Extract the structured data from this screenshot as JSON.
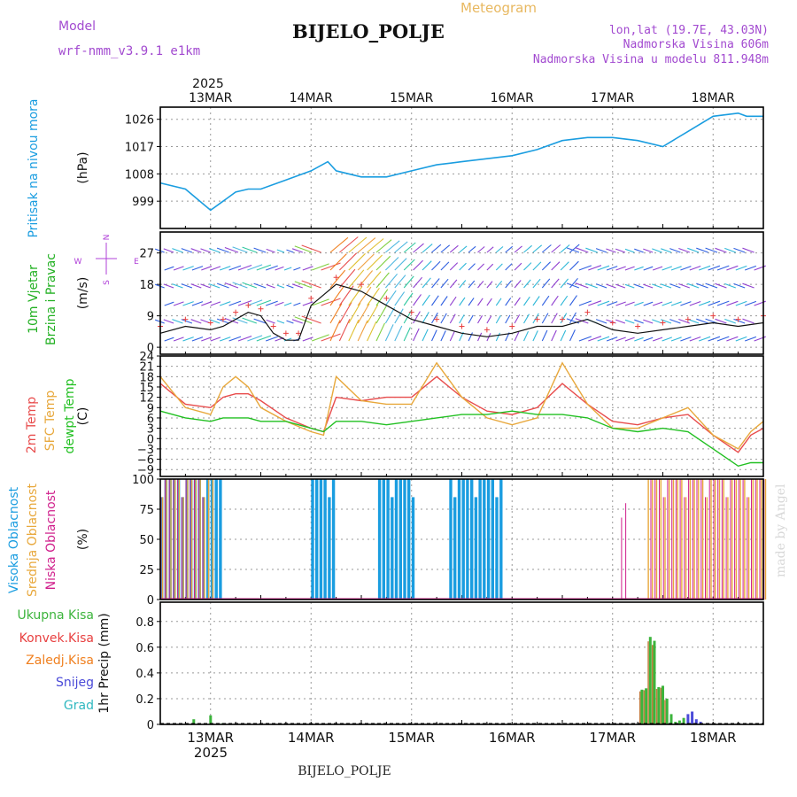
{
  "header": {
    "model_label": "Model",
    "model_name": "wrf-nmm_v3.9.1 e1km",
    "app_title": "Meteogram",
    "station": "BIJELO_POLJE",
    "lonlat": "lon,lat (19.7E, 43.03N)",
    "altitude": "Nadmorska Visina 606m",
    "model_altitude": "Nadmorska Visina u modelu 811.948m"
  },
  "footer": {
    "station": "BIJELO_POLJE",
    "watermark": "made by Angel"
  },
  "colors": {
    "pressure": "#1a9de0",
    "wind_speed_label": "#22b022",
    "wind_dir_label": "#b040d8",
    "temp2m": "#e84c4c",
    "sfc": "#e8a83c",
    "dew": "#22c022",
    "high_cloud": "#1a9de0",
    "mid_cloud": "#e8a83c",
    "low_cloud": "#d0208c",
    "total_precip": "#3cb43c",
    "conv_precip": "#e84040",
    "frz_precip": "#f08020",
    "snow": "#4a4ad8",
    "hail": "#30b8c0",
    "grid": "#999999"
  },
  "timeline": {
    "year": "2025",
    "days": [
      "13MAR",
      "14MAR",
      "15MAR",
      "16MAR",
      "17MAR",
      "18MAR"
    ],
    "start_hour": 0,
    "end_hour": 144
  },
  "chart_data": [
    {
      "type": "line",
      "panel": "pressure",
      "ylabel": "(hPa)",
      "side_labels": [
        "Pritisak na nivou mora"
      ],
      "yticks": [
        999,
        1008,
        1017,
        1026
      ],
      "ylim": [
        990,
        1030
      ],
      "x": [
        0,
        6,
        12,
        15,
        18,
        21,
        24,
        30,
        36,
        40,
        42,
        48,
        54,
        60,
        66,
        72,
        78,
        84,
        90,
        96,
        102,
        108,
        114,
        120,
        126,
        132,
        138,
        140,
        144
      ],
      "values": [
        1005,
        1003,
        996,
        999,
        1002,
        1003,
        1003,
        1006,
        1009,
        1012,
        1009,
        1007,
        1007,
        1009,
        1011,
        1012,
        1013,
        1014,
        1016,
        1019,
        1020,
        1020,
        1019,
        1017,
        1022,
        1027,
        1028,
        1027,
        1027
      ]
    },
    {
      "type": "line",
      "panel": "wind",
      "ylabel": "(m/s)",
      "side_labels": [
        "10m Vjetar",
        "Brzina i Pravac"
      ],
      "compass": [
        "N",
        "E",
        "W",
        "S"
      ],
      "yticks": [
        0,
        9,
        18,
        27
      ],
      "ylim": [
        -2,
        33
      ],
      "x": [
        0,
        6,
        12,
        15,
        18,
        21,
        24,
        27,
        30,
        33,
        36,
        42,
        48,
        54,
        60,
        66,
        72,
        78,
        84,
        90,
        96,
        102,
        108,
        114,
        120,
        126,
        132,
        138,
        144
      ],
      "values": [
        4,
        6,
        5,
        6,
        8,
        10,
        9,
        4,
        2,
        2,
        12,
        18,
        16,
        12,
        8,
        6,
        4,
        3,
        4,
        6,
        6,
        8,
        5,
        4,
        5,
        6,
        7,
        6,
        7
      ]
    },
    {
      "type": "line",
      "panel": "temperature",
      "ylabel": "(C)",
      "side_labels": [
        "2m Temp",
        "SFC Temp",
        "dewpt Temp"
      ],
      "yticks": [
        -9,
        -6,
        -3,
        0,
        3,
        6,
        9,
        12,
        15,
        18,
        21,
        24
      ],
      "ylim": [
        -11,
        24
      ],
      "x": [
        0,
        6,
        12,
        15,
        18,
        21,
        24,
        30,
        36,
        39,
        42,
        48,
        54,
        60,
        66,
        72,
        78,
        84,
        90,
        96,
        102,
        108,
        114,
        120,
        126,
        132,
        138,
        141,
        144
      ],
      "series": [
        {
          "name": "2m Temp",
          "values": [
            16,
            10,
            9,
            12,
            13,
            13,
            11,
            6,
            3,
            2,
            12,
            11,
            12,
            12,
            18,
            12,
            8,
            7,
            9,
            16,
            10,
            5,
            4,
            6,
            7,
            1,
            -4,
            1,
            3
          ]
        },
        {
          "name": "SFC Temp",
          "values": [
            18,
            9,
            7,
            15,
            18,
            15,
            9,
            5,
            2,
            1,
            18,
            11,
            10,
            10,
            22,
            12,
            6,
            4,
            6,
            22,
            10,
            3,
            3,
            6,
            9,
            1,
            -3,
            2,
            5
          ]
        },
        {
          "name": "dewpt Temp",
          "values": [
            8,
            6,
            5,
            6,
            6,
            6,
            5,
            5,
            3,
            2,
            5,
            5,
            4,
            5,
            6,
            7,
            7,
            8,
            7,
            7,
            6,
            3,
            2,
            3,
            2,
            -3,
            -8,
            -7,
            -7
          ]
        }
      ]
    },
    {
      "type": "bar",
      "panel": "cloud",
      "ylabel": "(%)",
      "side_labels": [
        "Visoka Oblacnost",
        "Srednja Oblacnost",
        "Niska Oblacnost"
      ],
      "yticks": [
        0,
        25,
        50,
        75,
        100
      ],
      "ylim": [
        0,
        100
      ],
      "high_segments": [
        [
          0,
          14,
          100
        ],
        [
          36,
          41,
          100
        ],
        [
          52,
          60,
          100
        ],
        [
          69,
          81,
          100
        ]
      ],
      "mid_segments": [
        [
          0,
          12,
          100
        ],
        [
          116,
          144,
          100
        ]
      ],
      "low_segments": [
        [
          0,
          10,
          100
        ],
        [
          110,
          111,
          80
        ],
        [
          117,
          144,
          100
        ]
      ]
    },
    {
      "type": "bar",
      "panel": "precip",
      "ylabel": "1hr Precip (mm)",
      "side_labels": [
        "Ukupna Kisa",
        "Konvek.Kisa",
        "Zaledj.Kisa",
        "Snijeg",
        "Grad"
      ],
      "yticks": [
        0,
        0.2,
        0.4,
        0.6,
        0.8
      ],
      "ylim": [
        0,
        0.95
      ],
      "x": [
        8,
        12,
        15,
        115,
        116,
        117,
        118,
        119,
        120,
        121,
        122,
        123,
        124,
        125,
        126,
        127,
        128,
        129
      ],
      "values": [
        0.04,
        0.07,
        0.01,
        0.27,
        0.28,
        0.68,
        0.65,
        0.29,
        0.3,
        0.2,
        0.08,
        0.02,
        0.03,
        0.05,
        0.08,
        0.1,
        0.04,
        0.02
      ],
      "types": [
        "total",
        "total",
        "total",
        "total",
        "total",
        "total",
        "total",
        "total",
        "total",
        "total",
        "total",
        "total",
        "total",
        "total",
        "snow",
        "snow",
        "snow",
        "snow"
      ]
    }
  ]
}
